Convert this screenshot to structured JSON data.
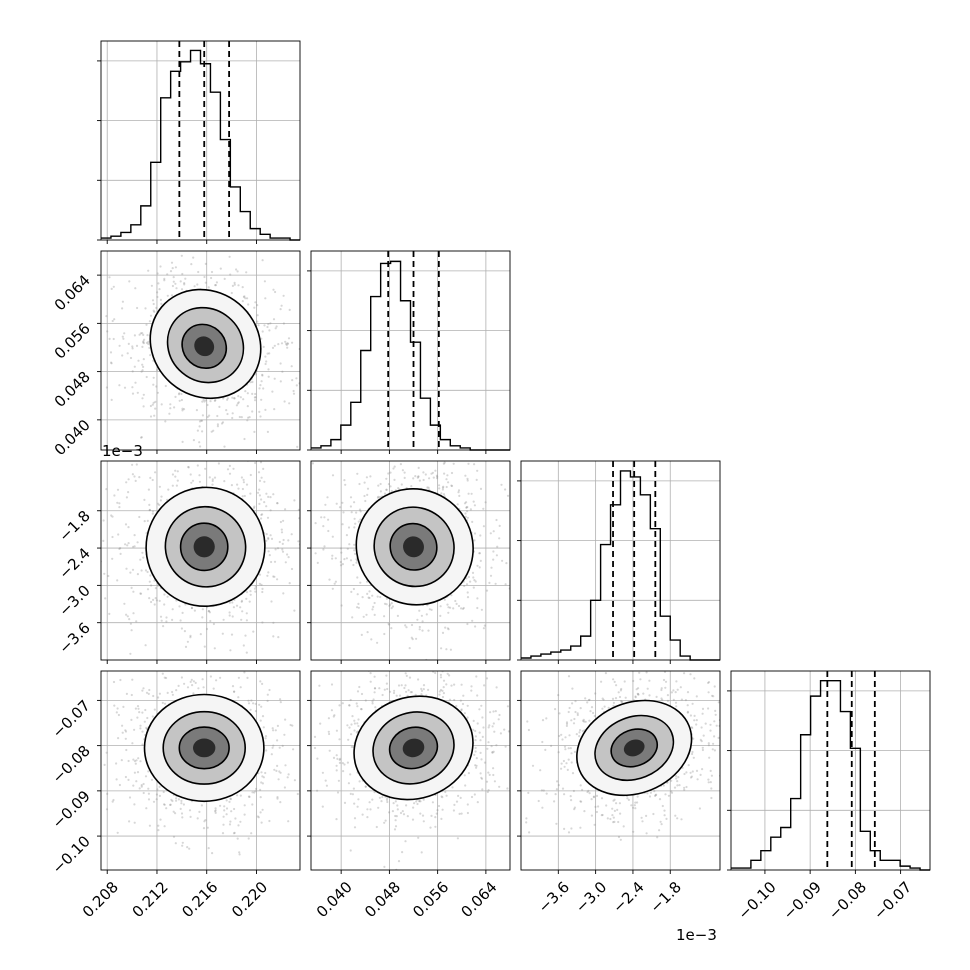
{
  "chart_data": {
    "type": "corner",
    "title": "",
    "grid": true,
    "parameters": [
      {
        "index": 0,
        "range": [
          0.2075,
          0.2235
        ],
        "ticks": [
          "0.208",
          "0.212",
          "0.216",
          "0.220"
        ],
        "tick_values": [
          0.208,
          0.212,
          0.216,
          0.22
        ],
        "offset_text": "",
        "quantiles": [
          0.2138,
          0.2158,
          0.2178
        ]
      },
      {
        "index": 1,
        "range": [
          0.035,
          0.068
        ],
        "ticks": [
          "0.040",
          "0.048",
          "0.056",
          "0.064"
        ],
        "tick_values": [
          0.04,
          0.048,
          0.056,
          0.064
        ],
        "offset_text": "",
        "quantiles": [
          0.0478,
          0.052,
          0.0562
        ]
      },
      {
        "index": 2,
        "range": [
          -4.2,
          -1.0
        ],
        "ticks": [
          "−3.6",
          "−3.0",
          "−2.4",
          "−1.8"
        ],
        "tick_values": [
          -3.6,
          -3.0,
          -2.4,
          -1.8
        ],
        "offset_text": "1e−3",
        "quantiles": [
          -2.72,
          -2.38,
          -2.04
        ]
      },
      {
        "index": 3,
        "range": [
          -0.1075,
          -0.0635
        ],
        "ticks": [
          "−0.10",
          "−0.09",
          "−0.08",
          "−0.07"
        ],
        "tick_values": [
          -0.1,
          -0.09,
          -0.08,
          -0.07
        ],
        "offset_text": "",
        "quantiles": [
          -0.0862,
          -0.0808,
          -0.0757
        ]
      }
    ],
    "marginals": [
      {
        "param": 0,
        "bin_edges_start": 0.2075,
        "bin_width": 0.0008,
        "counts": [
          1,
          2,
          4,
          8,
          18,
          41,
          75,
          89,
          94,
          100,
          93,
          78,
          53,
          28,
          15,
          6,
          3,
          1,
          1,
          0
        ],
        "ylim_top": 105
      },
      {
        "param": 1,
        "bin_edges_start": 0.035,
        "bin_width": 0.00165,
        "counts": [
          1,
          2,
          5,
          12,
          23,
          48,
          74,
          90,
          91,
          72,
          52,
          25,
          12,
          5,
          2,
          1,
          0,
          0,
          0,
          0
        ],
        "ylim_top": 96
      },
      {
        "param": 2,
        "bin_edges_start": -4.2,
        "bin_width": 0.16,
        "counts": [
          1,
          2,
          3,
          4,
          5,
          7,
          12,
          30,
          58,
          78,
          95,
          92,
          83,
          66,
          22,
          10,
          2,
          0,
          0,
          0
        ],
        "ylim_top": 100
      },
      {
        "param": 3,
        "bin_edges_start": -0.1075,
        "bin_width": 0.0022,
        "counts": [
          1,
          1,
          5,
          10,
          17,
          22,
          37,
          70,
          90,
          98,
          98,
          82,
          63,
          20,
          10,
          5,
          5,
          2,
          1,
          0
        ],
        "ylim_top": 103
      }
    ],
    "joint": [
      {
        "x_param": 0,
        "y_param": 1,
        "center": [
          0.2158,
          0.052
        ],
        "levels": [
          {
            "rx": 0.0042,
            "ry": 0.0095,
            "angle": -50,
            "dx": 0.0001,
            "dy": 0.0006
          },
          {
            "rx": 0.0029,
            "ry": 0.0065,
            "angle": -50,
            "dx": 0.0001,
            "dy": 0.0004
          },
          {
            "rx": 0.0017,
            "ry": 0.0038,
            "angle": -48,
            "dx": 0.0,
            "dy": 0.0002
          }
        ]
      },
      {
        "x_param": 0,
        "y_param": 2,
        "center": [
          0.2158,
          -2.38
        ],
        "levels": [
          {
            "rx": 0.0048,
            "ry": 0.95,
            "angle": -48,
            "dx": 0.0001,
            "dy": 0.0
          },
          {
            "rx": 0.0032,
            "ry": 0.65,
            "angle": -48,
            "dx": 0.0001,
            "dy": 0.0
          },
          {
            "rx": 0.0019,
            "ry": 0.38,
            "angle": -46,
            "dx": 0.0,
            "dy": 0.0
          }
        ]
      },
      {
        "x_param": 1,
        "y_param": 2,
        "center": [
          0.052,
          -2.38
        ],
        "levels": [
          {
            "rx": 0.0095,
            "ry": 0.95,
            "angle": -52,
            "dx": 0.0002,
            "dy": 0.0
          },
          {
            "rx": 0.0065,
            "ry": 0.65,
            "angle": -52,
            "dx": 0.0001,
            "dy": 0.0
          },
          {
            "rx": 0.0038,
            "ry": 0.38,
            "angle": -50,
            "dx": 0.0,
            "dy": 0.0
          }
        ]
      },
      {
        "x_param": 0,
        "y_param": 3,
        "center": [
          0.2158,
          -0.0805
        ],
        "levels": [
          {
            "rx": 0.0048,
            "ry": 0.0118,
            "angle": 0,
            "dx": 0.0,
            "dy": 0.0
          },
          {
            "rx": 0.0033,
            "ry": 0.008,
            "angle": 0,
            "dx": 0.0,
            "dy": 0.0
          },
          {
            "rx": 0.002,
            "ry": 0.0046,
            "angle": 0,
            "dx": 0.0,
            "dy": 0.0
          }
        ]
      },
      {
        "x_param": 1,
        "y_param": 3,
        "center": [
          0.052,
          -0.0805
        ],
        "levels": [
          {
            "rx": 0.01,
            "ry": 0.0112,
            "angle": -18,
            "dx": 0.0,
            "dy": 0.0
          },
          {
            "rx": 0.0068,
            "ry": 0.0078,
            "angle": -18,
            "dx": 0.0,
            "dy": 0.0
          },
          {
            "rx": 0.004,
            "ry": 0.0045,
            "angle": -15,
            "dx": 0.0,
            "dy": 0.0
          }
        ]
      },
      {
        "x_param": 2,
        "y_param": 3,
        "center": [
          -2.38,
          -0.0805
        ],
        "levels": [
          {
            "rx": 0.95,
            "ry": 0.01,
            "angle": -22,
            "dx": 0.0,
            "dy": 0.0
          },
          {
            "rx": 0.65,
            "ry": 0.0068,
            "angle": -22,
            "dx": 0.0,
            "dy": 0.0
          },
          {
            "rx": 0.38,
            "ry": 0.004,
            "angle": -20,
            "dx": 0.0,
            "dy": 0.0
          }
        ]
      }
    ]
  }
}
